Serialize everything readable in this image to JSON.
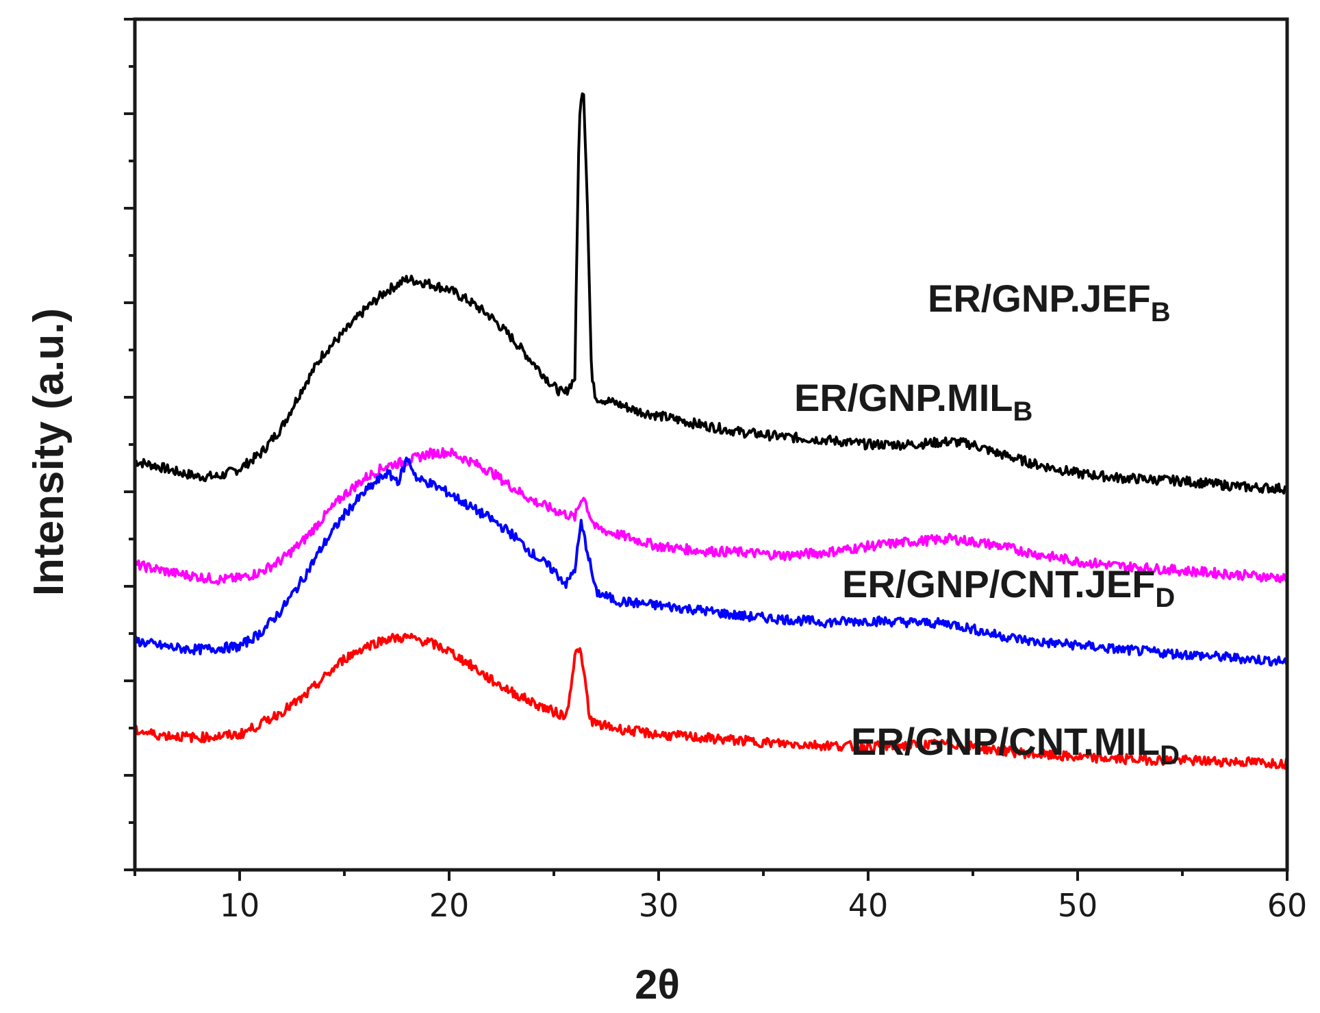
{
  "chart_data": {
    "type": "line",
    "xlabel": "2θ",
    "ylabel": "Intensity (a.u.)",
    "xlim": [
      5,
      60
    ],
    "x_ticks": [
      10,
      20,
      30,
      40,
      50,
      60
    ],
    "y_tick_labels": false,
    "grid": false,
    "legend": "inline labels to the right of each curve",
    "series": [
      {
        "label_main": "ER/GNP.JEF",
        "label_sub": "B",
        "color": "#000000",
        "points": [
          [
            5,
            13.45
          ],
          [
            6,
            13.3
          ],
          [
            7,
            13.1
          ],
          [
            8,
            12.95
          ],
          [
            9,
            12.95
          ],
          [
            10,
            13.2
          ],
          [
            11,
            13.7
          ],
          [
            12,
            14.55
          ],
          [
            13,
            15.85
          ],
          [
            14,
            17.0
          ],
          [
            15,
            17.7
          ],
          [
            16,
            18.45
          ],
          [
            17,
            19.05
          ],
          [
            18,
            19.45
          ],
          [
            19,
            19.3
          ],
          [
            20,
            19.1
          ],
          [
            21,
            18.7
          ],
          [
            22,
            18.2
          ],
          [
            23,
            17.5
          ],
          [
            24,
            16.7
          ],
          [
            25,
            15.9
          ],
          [
            25.5,
            15.65
          ],
          [
            26,
            16.2
          ],
          [
            26.2,
            24.5
          ],
          [
            26.4,
            26.0
          ],
          [
            26.6,
            22.0
          ],
          [
            26.8,
            16.2
          ],
          [
            27,
            15.55
          ],
          [
            28,
            15.35
          ],
          [
            29,
            15.1
          ],
          [
            30,
            14.95
          ],
          [
            32,
            14.65
          ],
          [
            34,
            14.4
          ],
          [
            36,
            14.25
          ],
          [
            38,
            14.15
          ],
          [
            40,
            14.0
          ],
          [
            42,
            14.0
          ],
          [
            44,
            14.1
          ],
          [
            45,
            14.0
          ],
          [
            46,
            13.75
          ],
          [
            48,
            13.35
          ],
          [
            50,
            13.05
          ],
          [
            52,
            12.9
          ],
          [
            55,
            12.8
          ],
          [
            58,
            12.6
          ],
          [
            60,
            12.55
          ]
        ]
      },
      {
        "label_main": "ER/GNP.MIL",
        "label_sub": "B",
        "color": "#ff00ff",
        "points": [
          [
            5,
            10.05
          ],
          [
            6,
            9.9
          ],
          [
            7,
            9.75
          ],
          [
            8,
            9.65
          ],
          [
            9,
            9.55
          ],
          [
            10,
            9.6
          ],
          [
            11,
            9.8
          ],
          [
            12,
            10.2
          ],
          [
            13,
            10.8
          ],
          [
            14,
            11.6
          ],
          [
            15,
            12.35
          ],
          [
            16,
            12.9
          ],
          [
            17,
            13.3
          ],
          [
            18,
            13.45
          ],
          [
            19,
            13.7
          ],
          [
            20,
            13.75
          ],
          [
            21,
            13.45
          ],
          [
            22,
            13.1
          ],
          [
            23,
            12.6
          ],
          [
            24,
            12.15
          ],
          [
            25,
            11.85
          ],
          [
            26,
            11.6
          ],
          [
            26.4,
            12.35
          ],
          [
            26.7,
            11.7
          ],
          [
            27,
            11.25
          ],
          [
            28,
            11.05
          ],
          [
            30,
            10.65
          ],
          [
            32,
            10.5
          ],
          [
            34,
            10.45
          ],
          [
            36,
            10.35
          ],
          [
            38,
            10.45
          ],
          [
            40,
            10.65
          ],
          [
            42,
            10.8
          ],
          [
            44,
            10.9
          ],
          [
            46,
            10.7
          ],
          [
            48,
            10.4
          ],
          [
            50,
            10.15
          ],
          [
            52,
            10.0
          ],
          [
            55,
            9.85
          ],
          [
            58,
            9.7
          ],
          [
            60,
            9.6
          ]
        ]
      },
      {
        "label_main": "ER/GNP/CNT.JEF",
        "label_sub": "D",
        "color": "#0000ff",
        "points": [
          [
            5,
            7.55
          ],
          [
            6,
            7.4
          ],
          [
            7,
            7.3
          ],
          [
            8,
            7.25
          ],
          [
            9,
            7.3
          ],
          [
            10,
            7.35
          ],
          [
            11,
            7.8
          ],
          [
            12,
            8.55
          ],
          [
            13,
            9.55
          ],
          [
            14,
            10.7
          ],
          [
            15,
            11.7
          ],
          [
            16,
            12.45
          ],
          [
            17,
            13.05
          ],
          [
            17.6,
            12.8
          ],
          [
            18,
            13.55
          ],
          [
            18.5,
            12.85
          ],
          [
            19,
            12.75
          ],
          [
            20,
            12.4
          ],
          [
            21,
            11.95
          ],
          [
            22,
            11.55
          ],
          [
            23,
            11.05
          ],
          [
            24,
            10.4
          ],
          [
            25,
            9.85
          ],
          [
            25.6,
            9.4
          ],
          [
            26,
            9.9
          ],
          [
            26.3,
            11.4
          ],
          [
            26.6,
            10.5
          ],
          [
            27,
            9.15
          ],
          [
            28,
            8.85
          ],
          [
            30,
            8.7
          ],
          [
            32,
            8.55
          ],
          [
            34,
            8.35
          ],
          [
            36,
            8.25
          ],
          [
            38,
            8.15
          ],
          [
            40,
            8.2
          ],
          [
            42,
            8.15
          ],
          [
            44,
            8.1
          ],
          [
            46,
            7.75
          ],
          [
            48,
            7.5
          ],
          [
            50,
            7.4
          ],
          [
            52,
            7.25
          ],
          [
            55,
            7.1
          ],
          [
            58,
            6.95
          ],
          [
            60,
            6.85
          ]
        ]
      },
      {
        "label_main": "ER/GNP/CNT.MIL",
        "label_sub": "D",
        "color": "#ff0000",
        "points": [
          [
            5,
            4.6
          ],
          [
            6,
            4.45
          ],
          [
            7,
            4.4
          ],
          [
            8,
            4.35
          ],
          [
            9,
            4.4
          ],
          [
            10,
            4.45
          ],
          [
            11,
            4.8
          ],
          [
            12,
            5.2
          ],
          [
            13,
            5.65
          ],
          [
            14,
            6.3
          ],
          [
            15,
            6.95
          ],
          [
            16,
            7.35
          ],
          [
            17,
            7.6
          ],
          [
            18,
            7.65
          ],
          [
            19,
            7.5
          ],
          [
            20,
            7.2
          ],
          [
            21,
            6.75
          ],
          [
            22,
            6.25
          ],
          [
            23,
            5.85
          ],
          [
            24,
            5.5
          ],
          [
            25,
            5.2
          ],
          [
            25.6,
            5.05
          ],
          [
            26,
            7.0
          ],
          [
            26.2,
            7.35
          ],
          [
            26.5,
            6.2
          ],
          [
            26.7,
            5.0
          ],
          [
            27,
            4.8
          ],
          [
            28,
            4.65
          ],
          [
            30,
            4.45
          ],
          [
            32,
            4.35
          ],
          [
            34,
            4.25
          ],
          [
            36,
            4.15
          ],
          [
            38,
            4.1
          ],
          [
            40,
            4.05
          ],
          [
            42,
            4.1
          ],
          [
            44,
            4.15
          ],
          [
            46,
            3.95
          ],
          [
            48,
            3.8
          ],
          [
            50,
            3.7
          ],
          [
            52,
            3.65
          ],
          [
            55,
            3.6
          ],
          [
            58,
            3.55
          ],
          [
            60,
            3.5
          ]
        ]
      }
    ]
  }
}
